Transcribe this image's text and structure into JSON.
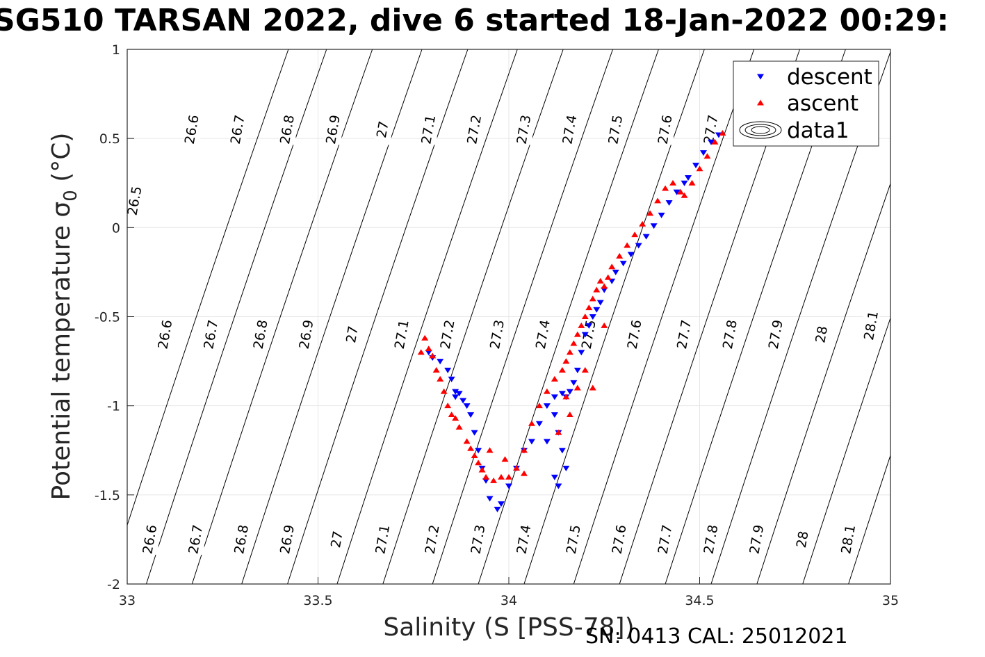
{
  "title": "SG510 TARSAN 2022, dive 6 started 18-Jan-2022 00:29:",
  "footer": "SN: 0413  CAL: 25012021",
  "colors": {
    "descent": "#0000ff",
    "ascent": "#ff0000",
    "grid": "#e6e6e6",
    "axis": "#262626",
    "contour": "#000000"
  },
  "chart_data": {
    "type": "scatter",
    "title": "SG510 TARSAN 2022, dive 6 started 18-Jan-2022 00:29:",
    "xlabel": "Salinity (S [PSS-78])",
    "ylabel": "Potential temperature σ",
    "ylabel_sub": "0",
    "ylabel_unit": " (°C)",
    "xlim": [
      33,
      35
    ],
    "ylim": [
      -2,
      1
    ],
    "xticks": [
      33,
      33.5,
      34,
      34.5,
      35
    ],
    "yticks": [
      -2,
      -1.5,
      -1,
      -0.5,
      0,
      0.5,
      1
    ],
    "xtick_labels": [
      "33",
      "33.5",
      "34",
      "34.5",
      "35"
    ],
    "ytick_labels": [
      "-2",
      "-1.5",
      "-1",
      "-0.5",
      "0",
      "0.5",
      "1"
    ],
    "grid": true,
    "legend_position": "top-right",
    "legend": [
      "descent",
      "ascent",
      "data1"
    ],
    "series": [
      {
        "name": "descent",
        "marker": "triangle-down",
        "color": "#0000ff",
        "x": [
          34.55,
          34.53,
          34.51,
          34.49,
          34.47,
          34.46,
          34.44,
          34.42,
          34.4,
          34.38,
          34.36,
          34.34,
          34.32,
          34.3,
          34.28,
          34.27,
          34.25,
          34.24,
          34.23,
          34.22,
          34.21,
          34.2,
          34.19,
          34.18,
          34.17,
          34.16,
          34.15,
          34.14,
          34.12,
          34.1,
          34.08,
          34.06,
          34.04,
          34.02,
          34.0,
          33.98,
          33.97,
          33.95,
          33.94,
          33.93,
          33.92,
          33.91,
          33.9,
          33.89,
          33.88,
          33.87,
          33.86,
          33.86,
          33.85,
          33.84,
          33.82,
          33.8,
          33.79,
          34.12,
          34.13,
          34.14,
          34.15,
          34.13,
          34.12,
          34.1
        ],
        "y": [
          0.52,
          0.48,
          0.42,
          0.35,
          0.28,
          0.25,
          0.2,
          0.14,
          0.07,
          0.01,
          -0.05,
          -0.1,
          -0.15,
          -0.2,
          -0.25,
          -0.3,
          -0.35,
          -0.42,
          -0.46,
          -0.5,
          -0.55,
          -0.6,
          -0.7,
          -0.8,
          -0.87,
          -0.92,
          -0.95,
          -0.93,
          -0.95,
          -1.0,
          -1.1,
          -1.2,
          -1.25,
          -1.35,
          -1.45,
          -1.55,
          -1.58,
          -1.52,
          -1.42,
          -1.35,
          -1.25,
          -1.15,
          -1.05,
          -1.0,
          -0.97,
          -0.93,
          -0.92,
          -0.95,
          -0.85,
          -0.8,
          -0.75,
          -0.73,
          -0.7,
          -1.05,
          -1.15,
          -1.25,
          -1.35,
          -1.45,
          -1.4,
          -1.2
        ]
      },
      {
        "name": "ascent",
        "marker": "triangle-up",
        "color": "#ff0000",
        "x": [
          34.56,
          34.54,
          34.52,
          34.5,
          34.48,
          34.46,
          34.45,
          34.43,
          34.41,
          34.39,
          34.37,
          34.35,
          34.33,
          34.31,
          34.29,
          34.27,
          34.26,
          34.25,
          34.24,
          34.23,
          34.22,
          34.21,
          34.2,
          34.19,
          34.18,
          34.17,
          34.16,
          34.15,
          34.14,
          34.12,
          34.1,
          34.08,
          34.06,
          34.04,
          34.02,
          34.0,
          33.98,
          33.96,
          33.94,
          33.93,
          33.92,
          33.91,
          33.9,
          33.89,
          33.87,
          33.86,
          33.85,
          33.84,
          33.83,
          33.82,
          33.81,
          33.8,
          33.79,
          33.78,
          33.77,
          34.2,
          34.22,
          34.25,
          34.18,
          34.16,
          34.13,
          34.15,
          34.04,
          33.95,
          33.99
        ],
        "y": [
          0.53,
          0.48,
          0.4,
          0.33,
          0.25,
          0.18,
          0.2,
          0.25,
          0.22,
          0.15,
          0.08,
          0.02,
          -0.04,
          -0.1,
          -0.16,
          -0.22,
          -0.28,
          -0.33,
          -0.3,
          -0.35,
          -0.4,
          -0.45,
          -0.5,
          -0.55,
          -0.6,
          -0.65,
          -0.7,
          -0.75,
          -0.8,
          -0.85,
          -0.92,
          -1.0,
          -1.1,
          -1.25,
          -1.35,
          -1.4,
          -1.4,
          -1.42,
          -1.4,
          -1.36,
          -1.32,
          -1.28,
          -1.24,
          -1.2,
          -1.12,
          -1.07,
          -1.05,
          -1.0,
          -0.92,
          -0.85,
          -0.8,
          -0.72,
          -0.68,
          -0.62,
          -0.7,
          -0.8,
          -0.9,
          -0.55,
          -0.9,
          -1.05,
          -1.15,
          -0.95,
          -1.38,
          -1.25,
          -1.3
        ]
      }
    ],
    "contours": [
      {
        "label": "26.5",
        "x0": 32.95,
        "xs": [],
        "label_s": [
          {
            "y": 0.15,
            "x": 33.02
          }
        ]
      },
      {
        "label": "26.6",
        "x0": 33.05,
        "labels": [
          {
            "x": 33.17,
            "y": 0.55
          },
          {
            "x": 33.1,
            "y": -0.6
          },
          {
            "x": 33.06,
            "y": -1.75
          }
        ]
      },
      {
        "label": "26.7",
        "x0": 33.17,
        "labels": [
          {
            "x": 33.29,
            "y": 0.55
          },
          {
            "x": 33.22,
            "y": -0.6
          },
          {
            "x": 33.18,
            "y": -1.75
          }
        ]
      },
      {
        "label": "26.8",
        "x0": 33.3,
        "labels": [
          {
            "x": 33.42,
            "y": 0.55
          },
          {
            "x": 33.35,
            "y": -0.6
          },
          {
            "x": 33.3,
            "y": -1.75
          }
        ]
      },
      {
        "label": "26.9",
        "x0": 33.42,
        "labels": [
          {
            "x": 33.54,
            "y": 0.55
          },
          {
            "x": 33.47,
            "y": -0.6
          },
          {
            "x": 33.42,
            "y": -1.75
          }
        ]
      },
      {
        "label": "27",
        "x0": 33.55,
        "labels": [
          {
            "x": 33.67,
            "y": 0.55
          },
          {
            "x": 33.59,
            "y": -0.6
          },
          {
            "x": 33.55,
            "y": -1.75
          }
        ]
      },
      {
        "label": "27.1",
        "x0": 33.67,
        "labels": [
          {
            "x": 33.79,
            "y": 0.55
          },
          {
            "x": 33.72,
            "y": -0.6
          },
          {
            "x": 33.67,
            "y": -1.75
          }
        ]
      },
      {
        "label": "27.2",
        "x0": 33.8,
        "labels": [
          {
            "x": 33.91,
            "y": 0.55
          },
          {
            "x": 33.84,
            "y": -0.6
          },
          {
            "x": 33.8,
            "y": -1.75
          }
        ]
      },
      {
        "label": "27.3",
        "x0": 33.92,
        "labels": [
          {
            "x": 34.04,
            "y": 0.55
          },
          {
            "x": 33.97,
            "y": -0.6
          },
          {
            "x": 33.92,
            "y": -1.75
          }
        ]
      },
      {
        "label": "27.4",
        "x0": 34.04,
        "labels": [
          {
            "x": 34.16,
            "y": 0.55
          },
          {
            "x": 34.09,
            "y": -0.6
          },
          {
            "x": 34.04,
            "y": -1.75
          }
        ]
      },
      {
        "label": "27.5",
        "x0": 34.17,
        "labels": [
          {
            "x": 34.28,
            "y": 0.55
          },
          {
            "x": 34.21,
            "y": -0.6
          },
          {
            "x": 34.17,
            "y": -1.75
          }
        ]
      },
      {
        "label": "27.6",
        "x0": 34.29,
        "labels": [
          {
            "x": 34.41,
            "y": 0.55
          },
          {
            "x": 34.33,
            "y": -0.6
          },
          {
            "x": 34.29,
            "y": -1.75
          }
        ]
      },
      {
        "label": "27.7",
        "x0": 34.41,
        "labels": [
          {
            "x": 34.53,
            "y": 0.55
          },
          {
            "x": 34.46,
            "y": -0.6
          },
          {
            "x": 34.41,
            "y": -1.75
          }
        ]
      },
      {
        "label": "27.8",
        "x0": 34.53,
        "labels": [
          {
            "x": 34.58,
            "y": -0.6
          },
          {
            "x": 34.53,
            "y": -1.75
          }
        ]
      },
      {
        "label": "27.9",
        "x0": 34.65,
        "labels": [
          {
            "x": 34.7,
            "y": -0.6
          },
          {
            "x": 34.65,
            "y": -1.75
          }
        ]
      },
      {
        "label": "28",
        "x0": 34.77,
        "labels": [
          {
            "x": 34.82,
            "y": -0.6
          },
          {
            "x": 34.77,
            "y": -1.75
          }
        ]
      },
      {
        "label": "28.1",
        "x0": 34.89,
        "labels": [
          {
            "x": 34.95,
            "y": -0.55
          },
          {
            "x": 34.89,
            "y": -1.75
          }
        ]
      }
    ]
  }
}
